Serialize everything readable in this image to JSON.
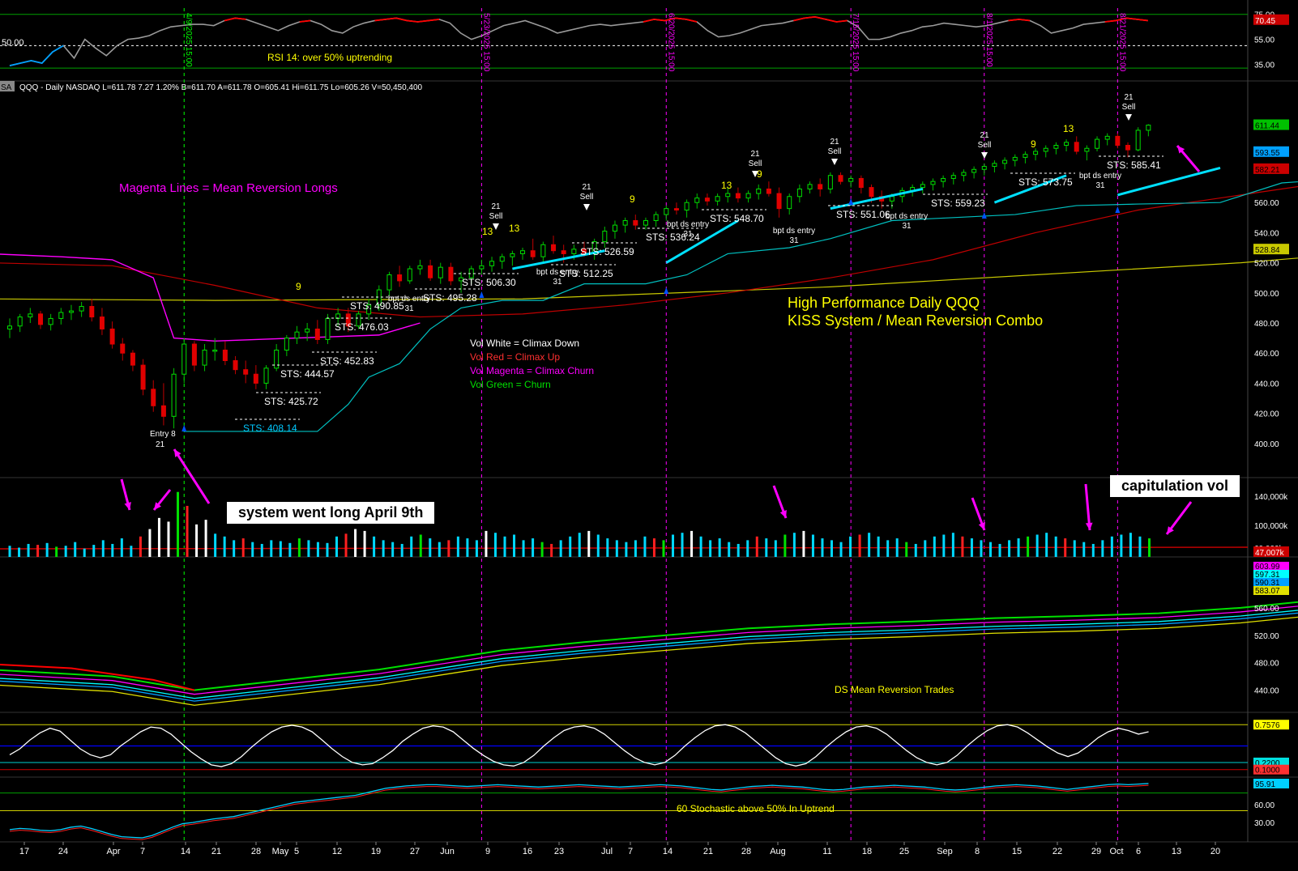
{
  "chart_data": {
    "type": "candlestick",
    "symbol": "QQQ",
    "title": "High Performance Daily QQQ",
    "subtitle": "KISS System / Mean Reversion Combo",
    "header": "QQQ - Daily  NASDAQ  L=611.78  7.27  1.20%  B=611.70  A=611.78  O=605.41  Hi=611.75  Lo=605.26  V=50,450,400",
    "header_tag": "SA",
    "x_ticks": [
      "17",
      "24",
      "Apr",
      "7",
      "14",
      "21",
      "28",
      "May",
      "5",
      "12",
      "19",
      "27",
      "Jun",
      "9",
      "16",
      "23",
      "Jul",
      "7",
      "14",
      "21",
      "28",
      "Aug",
      "11",
      "18",
      "25",
      "Sep",
      "8",
      "15",
      "22",
      "29",
      "Oct",
      "6",
      "13",
      "20"
    ],
    "rsi_panel": {
      "label": "RSI 14: over 50% uptrending",
      "left_value": "50.00",
      "y_ticks": [
        "75.00",
        "55.00",
        "35.00"
      ],
      "last_value": "70.45",
      "values": [
        34,
        36,
        38,
        36,
        45,
        50,
        40,
        55,
        48,
        42,
        50,
        55,
        56,
        58,
        62,
        65,
        66,
        67,
        67,
        66,
        70,
        72,
        71,
        68,
        65,
        62,
        66,
        69,
        70,
        67,
        62,
        60,
        65,
        68,
        70,
        71,
        72,
        70,
        69,
        70,
        71,
        68,
        60,
        55,
        58,
        62,
        66,
        68,
        70,
        67,
        64,
        60,
        62,
        64,
        66,
        67,
        66,
        67,
        68,
        69,
        71,
        70,
        72,
        71,
        69,
        62,
        57,
        58,
        60,
        63,
        66,
        67,
        68,
        70,
        72,
        73,
        71,
        69,
        70,
        65,
        55,
        55,
        57,
        60,
        62,
        65,
        66,
        68,
        67,
        66,
        65,
        66,
        68,
        70,
        71,
        70,
        66,
        60,
        62,
        64,
        67,
        68,
        69,
        70,
        72,
        71,
        70
      ]
    },
    "price_panel": {
      "y_ticks": [
        400,
        420,
        440,
        460,
        480,
        500,
        520,
        540,
        560
      ],
      "y_range": [
        380,
        630
      ],
      "price_badges": [
        "611.44",
        "593.55",
        "582.21",
        "528.84"
      ],
      "ohlc": [
        [
          476,
          483,
          470,
          478
        ],
        [
          478,
          486,
          474,
          484
        ],
        [
          484,
          490,
          480,
          486
        ],
        [
          486,
          488,
          476,
          479
        ],
        [
          479,
          486,
          475,
          483
        ],
        [
          483,
          490,
          479,
          487
        ],
        [
          487,
          492,
          482,
          488
        ],
        [
          488,
          494,
          484,
          491
        ],
        [
          491,
          496,
          481,
          484
        ],
        [
          484,
          490,
          472,
          476
        ],
        [
          476,
          481,
          463,
          466
        ],
        [
          466,
          470,
          455,
          460
        ],
        [
          460,
          462,
          448,
          452
        ],
        [
          452,
          456,
          432,
          436
        ],
        [
          436,
          442,
          421,
          425
        ],
        [
          425,
          440,
          412,
          418
        ],
        [
          418,
          450,
          410,
          446
        ],
        [
          446,
          470,
          440,
          466
        ],
        [
          466,
          468,
          448,
          452
        ],
        [
          452,
          466,
          448,
          462
        ],
        [
          462,
          470,
          455,
          462
        ],
        [
          462,
          468,
          452,
          455
        ],
        [
          455,
          458,
          446,
          449
        ],
        [
          449,
          455,
          440,
          446
        ],
        [
          446,
          452,
          436,
          440
        ],
        [
          440,
          452,
          436,
          450
        ],
        [
          450,
          466,
          448,
          462
        ],
        [
          462,
          472,
          458,
          470
        ],
        [
          470,
          478,
          466,
          474
        ],
        [
          474,
          480,
          468,
          476
        ],
        [
          476,
          482,
          466,
          469
        ],
        [
          469,
          486,
          466,
          483
        ],
        [
          483,
          490,
          478,
          486
        ],
        [
          486,
          490,
          474,
          478
        ],
        [
          478,
          488,
          476,
          486
        ],
        [
          486,
          496,
          482,
          492
        ],
        [
          492,
          505,
          488,
          502
        ],
        [
          502,
          514,
          498,
          512
        ],
        [
          512,
          518,
          504,
          508
        ],
        [
          508,
          518,
          506,
          516
        ],
        [
          516,
          522,
          512,
          518
        ],
        [
          518,
          522,
          508,
          510
        ],
        [
          510,
          520,
          506,
          517
        ],
        [
          517,
          520,
          505,
          508
        ],
        [
          508,
          514,
          500,
          510
        ],
        [
          510,
          518,
          506,
          516
        ],
        [
          516,
          522,
          512,
          518
        ],
        [
          518,
          524,
          514,
          521
        ],
        [
          521,
          526,
          516,
          524
        ],
        [
          524,
          528,
          518,
          526
        ],
        [
          526,
          530,
          522,
          528
        ],
        [
          528,
          536,
          522,
          524
        ],
        [
          524,
          534,
          520,
          532
        ],
        [
          532,
          538,
          526,
          528
        ],
        [
          528,
          532,
          520,
          526
        ],
        [
          526,
          532,
          522,
          529
        ],
        [
          529,
          534,
          524,
          526
        ],
        [
          526,
          536,
          522,
          534
        ],
        [
          534,
          544,
          530,
          541
        ],
        [
          541,
          548,
          536,
          545
        ],
        [
          545,
          550,
          540,
          548
        ],
        [
          548,
          552,
          542,
          545
        ],
        [
          545,
          550,
          542,
          548
        ],
        [
          548,
          554,
          544,
          552
        ],
        [
          552,
          558,
          548,
          556
        ],
        [
          556,
          560,
          552,
          555
        ],
        [
          555,
          562,
          550,
          560
        ],
        [
          560,
          566,
          556,
          563
        ],
        [
          563,
          566,
          558,
          561
        ],
        [
          561,
          566,
          558,
          564
        ],
        [
          564,
          570,
          560,
          566
        ],
        [
          566,
          570,
          560,
          563
        ],
        [
          563,
          568,
          560,
          566
        ],
        [
          566,
          572,
          562,
          569
        ],
        [
          569,
          574,
          564,
          566
        ],
        [
          566,
          570,
          550,
          556
        ],
        [
          556,
          566,
          552,
          564
        ],
        [
          564,
          572,
          560,
          569
        ],
        [
          569,
          574,
          566,
          572
        ],
        [
          572,
          576,
          564,
          569
        ],
        [
          569,
          580,
          566,
          578
        ],
        [
          578,
          580,
          572,
          574
        ],
        [
          574,
          578,
          570,
          576
        ],
        [
          576,
          578,
          566,
          570
        ],
        [
          570,
          572,
          560,
          564
        ],
        [
          564,
          568,
          556,
          561
        ],
        [
          561,
          566,
          556,
          564
        ],
        [
          564,
          570,
          560,
          568
        ],
        [
          568,
          572,
          564,
          570
        ],
        [
          570,
          574,
          566,
          572
        ],
        [
          572,
          576,
          568,
          574
        ],
        [
          574,
          578,
          570,
          576
        ],
        [
          576,
          580,
          572,
          578
        ],
        [
          578,
          582,
          574,
          580
        ],
        [
          580,
          584,
          576,
          582
        ],
        [
          582,
          586,
          578,
          584
        ],
        [
          584,
          588,
          580,
          586
        ],
        [
          586,
          590,
          582,
          588
        ],
        [
          588,
          592,
          584,
          590
        ],
        [
          590,
          594,
          586,
          592
        ],
        [
          592,
          596,
          588,
          594
        ],
        [
          594,
          598,
          590,
          596
        ],
        [
          596,
          600,
          592,
          598
        ],
        [
          598,
          602,
          594,
          600
        ],
        [
          600,
          604,
          592,
          594
        ],
        [
          594,
          598,
          588,
          596
        ],
        [
          596,
          604,
          594,
          602
        ],
        [
          602,
          606,
          598,
          604
        ],
        [
          604,
          606,
          596,
          598
        ],
        [
          598,
          600,
          590,
          595
        ],
        [
          595,
          610,
          594,
          608
        ],
        [
          608,
          612,
          604,
          611.4
        ]
      ],
      "text_notes": {
        "magenta_note": "Magenta Lines = Mean Reversion Longs",
        "vol_legend": [
          "Vol White = Climax Down",
          "Vol Red = Climax Up",
          "Vol Magenta = Climax Churn",
          "Vol Green = Churn"
        ],
        "entry": [
          "Entry 8",
          "21"
        ],
        "callout": "system went long April 9th",
        "sts_labels": [
          "STS: 408.14",
          "STS: 425.72",
          "STS: 444.57",
          "STS: 452.83",
          "STS: 476.03",
          "STS: 490.85",
          "STS: 495.28",
          "STS: 506.30",
          "STS: 512.25",
          "STS: 526.59",
          "STS: 536.24",
          "STS: 548.70",
          "STS: 551.06",
          "STS: 559.23",
          "STS: 573.75",
          "STS: 585.41"
        ],
        "seq_labels": [
          "9",
          "13",
          "9",
          "13",
          "9",
          "13",
          "9",
          "13"
        ],
        "sell_labels": [
          "21",
          "Sell"
        ],
        "bpt_labels": [
          "bpt ds entry",
          "31"
        ],
        "date_labels": [
          "4/9/2025 15:00",
          "5/23/2025 15:00",
          "6/20/2025 15:00",
          "7/15/2025 15:00",
          "8/1/2025 15:00",
          "8/21/2025 15:00",
          "9/25/2025 15:00"
        ]
      }
    },
    "volume_panel": {
      "label": "capitulation vol",
      "y_ticks": [
        "140,000k",
        "100,000k",
        "60,000k"
      ],
      "last_value": "47,007k",
      "values": [
        12,
        10,
        14,
        13,
        15,
        11,
        12,
        16,
        9,
        13,
        18,
        14,
        20,
        12,
        22,
        30,
        42,
        38,
        70,
        55,
        35,
        40,
        25,
        22,
        18,
        20,
        16,
        14,
        18,
        17,
        15,
        20,
        18,
        16,
        15,
        22,
        25,
        30,
        28,
        22,
        18,
        16,
        14,
        22,
        24,
        20,
        16,
        18,
        22,
        20,
        18,
        28,
        26,
        22,
        24,
        18,
        20,
        16,
        14,
        18,
        22,
        26,
        28,
        24,
        20,
        18,
        16,
        18,
        22,
        20,
        18,
        24,
        26,
        28,
        22,
        18,
        20,
        16,
        14,
        18,
        22,
        20,
        18,
        24,
        26,
        28,
        24,
        20,
        18,
        16,
        22,
        24,
        26,
        22,
        18,
        20,
        16,
        14,
        18,
        22,
        24,
        26,
        22,
        20,
        18,
        16,
        14,
        18,
        20,
        22,
        24,
        26,
        22,
        20,
        18,
        16,
        14,
        18,
        22,
        24,
        26,
        22,
        20
      ]
    },
    "ma_panel": {
      "label": "DS Mean Reversion Trades",
      "y_ticks": [
        440,
        480,
        520,
        560
      ],
      "badges": [
        "603.99",
        "597.31",
        "590.31",
        "583.07"
      ]
    },
    "osc_panel": {
      "badges": [
        "0.7576",
        "0.2200",
        "0.1000"
      ],
      "values": [
        0.35,
        0.45,
        0.6,
        0.72,
        0.8,
        0.75,
        0.6,
        0.45,
        0.35,
        0.3,
        0.35,
        0.5,
        0.62,
        0.74,
        0.82,
        0.8,
        0.7,
        0.55,
        0.4,
        0.28,
        0.18,
        0.15,
        0.2,
        0.32,
        0.48,
        0.62,
        0.74,
        0.82,
        0.85,
        0.82,
        0.74,
        0.6,
        0.45,
        0.32,
        0.22,
        0.18,
        0.2,
        0.3,
        0.42,
        0.58,
        0.7,
        0.8,
        0.84,
        0.82,
        0.74,
        0.6,
        0.46,
        0.34,
        0.24,
        0.18,
        0.16,
        0.22,
        0.34,
        0.5,
        0.64,
        0.76,
        0.82,
        0.84,
        0.8,
        0.7,
        0.56,
        0.42,
        0.3,
        0.22,
        0.18,
        0.22,
        0.34,
        0.5,
        0.64,
        0.76,
        0.84,
        0.86,
        0.82,
        0.72,
        0.58,
        0.44,
        0.3,
        0.2,
        0.16,
        0.2,
        0.32,
        0.48,
        0.62,
        0.74,
        0.82,
        0.84,
        0.8,
        0.7,
        0.56,
        0.42,
        0.3,
        0.22,
        0.18,
        0.22,
        0.34,
        0.5,
        0.64,
        0.76,
        0.84,
        0.86,
        0.82,
        0.72,
        0.6,
        0.48,
        0.38,
        0.32,
        0.38,
        0.5,
        0.64,
        0.74,
        0.8,
        0.76,
        0.7,
        0.74
      ]
    },
    "stoch_panel": {
      "label": "60 Stochastic above 50% In Uptrend",
      "y_ticks": [
        "60.00",
        "30.00"
      ],
      "last_value": "95.91",
      "values": [
        18,
        20,
        19,
        17,
        16,
        18,
        22,
        24,
        20,
        15,
        10,
        6,
        5,
        4,
        8,
        15,
        22,
        28,
        30,
        33,
        36,
        38,
        40,
        44,
        48,
        52,
        56,
        60,
        64,
        66,
        68,
        70,
        72,
        74,
        76,
        80,
        84,
        88,
        90,
        92,
        93,
        94,
        94,
        93,
        92,
        91,
        92,
        93,
        94,
        93,
        92,
        91,
        90,
        91,
        92,
        93,
        94,
        93,
        92,
        91,
        90,
        91,
        92,
        93,
        94,
        93,
        92,
        90,
        88,
        86,
        85,
        87,
        89,
        91,
        92,
        93,
        92,
        91,
        90,
        88,
        86,
        85,
        86,
        88,
        90,
        91,
        92,
        93,
        92,
        91,
        90,
        88,
        86,
        85,
        86,
        88,
        90,
        92,
        93,
        94,
        93,
        92,
        90,
        88,
        86,
        88,
        90,
        92,
        94,
        95,
        94,
        95,
        96
      ]
    },
    "colors": {
      "up": "#00e000",
      "down": "#e00000",
      "cyan": "#00c8ff",
      "magenta": "#ff00ff",
      "yellow": "#ffff00",
      "text": "#ffffff"
    }
  }
}
